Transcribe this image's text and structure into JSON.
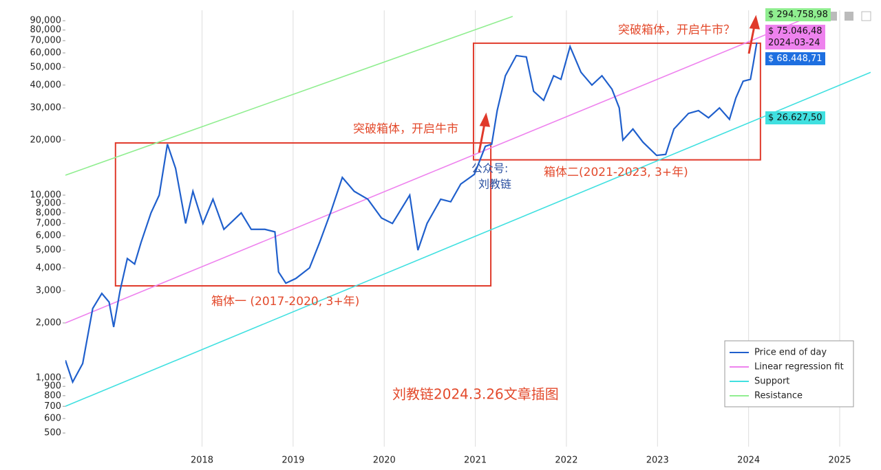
{
  "chart_data": {
    "type": "line",
    "xlim": [
      2016.5,
      2025.34
    ],
    "xticks": [
      2018,
      2019,
      2020,
      2021,
      2022,
      2023,
      2024,
      2025
    ],
    "ylim": [
      421,
      102600
    ],
    "log_y": true,
    "grid": true,
    "yticks": [
      500,
      600,
      700,
      800,
      900,
      {
        "value": 1000,
        "label": "1,000"
      },
      {
        "value": 2000,
        "label": "2,000"
      },
      {
        "value": 3000,
        "label": "3,000"
      },
      {
        "value": 4000,
        "label": "4,000"
      },
      {
        "value": 5000,
        "label": "5,000"
      },
      {
        "value": 6000,
        "label": "6,000"
      },
      {
        "value": 7000,
        "label": "7,000"
      },
      {
        "value": 8000,
        "label": "8,000"
      },
      {
        "value": 9000,
        "label": "9,000"
      },
      {
        "value": 10000,
        "label": "10,000"
      },
      {
        "value": 20000,
        "label": "20,000"
      },
      {
        "value": 30000,
        "label": "30,000"
      },
      {
        "value": 40000,
        "label": "40,000"
      },
      {
        "value": 50000,
        "label": "50,000"
      },
      {
        "value": 60000,
        "label": "60,000"
      },
      {
        "value": 70000,
        "label": "70,000"
      },
      {
        "value": 80000,
        "label": "80,000"
      },
      {
        "value": 90000,
        "label": "90,000"
      }
    ],
    "series": [
      {
        "name": "Price end of day",
        "color": "#1f5fcc",
        "x": [
          2016.5,
          2016.58,
          2016.69,
          2016.8,
          2016.9,
          2016.98,
          2017.03,
          2017.1,
          2017.18,
          2017.26,
          2017.33,
          2017.44,
          2017.53,
          2017.62,
          2017.71,
          2017.82,
          2017.9,
          2018.01,
          2018.12,
          2018.24,
          2018.43,
          2018.54,
          2018.69,
          2018.8,
          2018.84,
          2018.92,
          2019.03,
          2019.18,
          2019.29,
          2019.41,
          2019.54,
          2019.67,
          2019.82,
          2019.97,
          2020.09,
          2020.28,
          2020.37,
          2020.47,
          2020.62,
          2020.73,
          2020.84,
          2020.99,
          2021.11,
          2021.18,
          2021.24,
          2021.33,
          2021.45,
          2021.56,
          2021.64,
          2021.75,
          2021.86,
          2021.94,
          2022.04,
          2022.16,
          2022.28,
          2022.39,
          2022.5,
          2022.58,
          2022.62,
          2022.73,
          2022.84,
          2022.99,
          2023.09,
          2023.18,
          2023.34,
          2023.45,
          2023.56,
          2023.68,
          2023.79,
          2023.86,
          2023.94,
          2024.02,
          2024.05,
          2024.09
        ],
        "values": [
          1250,
          950,
          1200,
          2400,
          2900,
          2600,
          1900,
          3000,
          4500,
          4200,
          5500,
          8000,
          10000,
          19000,
          14000,
          7000,
          10500,
          7000,
          9500,
          6500,
          8000,
          6500,
          6500,
          6300,
          3800,
          3300,
          3500,
          4000,
          5500,
          8000,
          12500,
          10500,
          9500,
          7500,
          7000,
          10000,
          5000,
          7000,
          9500,
          9200,
          11500,
          13000,
          18500,
          19000,
          29000,
          45000,
          58000,
          57000,
          37000,
          33000,
          45000,
          43000,
          65000,
          47000,
          40000,
          45000,
          38000,
          30000,
          20000,
          23000,
          19500,
          16500,
          16700,
          23000,
          28000,
          29000,
          26500,
          30000,
          26000,
          34000,
          42000,
          43000,
          52000,
          68448
        ]
      },
      {
        "name": "Linear regression fit",
        "color": "#ee82ee",
        "x": [
          2016.5,
          2025.34
        ],
        "values": [
          2000,
          130000
        ]
      },
      {
        "name": "Support",
        "color": "#40e0e0",
        "x": [
          2016.5,
          2025.34
        ],
        "values": [
          700,
          47000
        ]
      },
      {
        "name": "Resistance",
        "color": "#90ee90",
        "x": [
          2016.5,
          2021.41
        ],
        "values": [
          12850,
          95000
        ]
      }
    ],
    "boxes": [
      {
        "x": [
          2017.05,
          2021.17
        ],
        "y": [
          3190,
          19300
        ],
        "color": "#e0392a"
      },
      {
        "x": [
          2020.98,
          2024.13
        ],
        "y": [
          15600,
          67800
        ],
        "color": "#e0392a"
      }
    ],
    "price_tags": [
      {
        "text": "$ 294.758,98",
        "color": "#90ee90"
      },
      {
        "text": "$ 75.046,48",
        "sub": "2024-03-24",
        "color": "#ee82ee"
      },
      {
        "text": "$ 68.448,71",
        "color": "#1e6fe0"
      },
      {
        "text": "$ 26.627,50",
        "color": "#40e0e0"
      }
    ],
    "annotations": {
      "breakout1": "突破箱体，开启牛市",
      "breakout2": "突破箱体，开启牛市？",
      "box1": "箱体一 (2017-2020, 3+年)",
      "box2": "箱体二(2021-2023, 3+年)",
      "account1": "公众号:",
      "account2": "刘教链",
      "watermark": "刘教链2024.3.26文章插图"
    }
  }
}
